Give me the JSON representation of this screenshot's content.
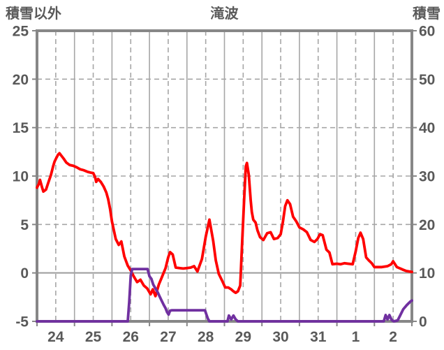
{
  "header": {
    "left_axis_title": "積雪以外",
    "chart_title": "滝波",
    "right_axis_title": "積雪"
  },
  "colors": {
    "red_series": "#FF0000",
    "purple_series": "#7030A0",
    "grid": "#A6A6A6",
    "zero_line": "#9B9B9B",
    "border": "#878787",
    "text": "#595959",
    "background": "#FFFFFF"
  },
  "chart_data": {
    "type": "line",
    "title": "滝波",
    "legend": "none",
    "left_axis": {
      "title": "積雪以外",
      "min": -5,
      "max": 25,
      "ticks": [
        25,
        20,
        15,
        10,
        5,
        0,
        -5
      ]
    },
    "right_axis": {
      "title": "積雪",
      "min": 0,
      "max": 60,
      "ticks": [
        60,
        50,
        40,
        30,
        20,
        10,
        0
      ]
    },
    "x_axis": {
      "range_days": [
        0,
        10
      ],
      "tick_labels": [
        "24",
        "25",
        "26",
        "27",
        "28",
        "29",
        "30",
        "31",
        "1",
        "2"
      ],
      "tick_positions_days": [
        0.5,
        1.5,
        2.5,
        3.5,
        4.5,
        5.5,
        6.5,
        7.5,
        8.5,
        9.5
      ]
    },
    "grid": {
      "v_solid_days": [
        1,
        2,
        3,
        4,
        5,
        6,
        7,
        8,
        9
      ],
      "v_dashed_days": [
        0.5,
        1.5,
        2.5,
        3.5,
        4.5,
        5.5,
        6.5,
        7.5,
        8.5,
        9.5
      ],
      "h_dashed_left_values": [
        20,
        15,
        10,
        5
      ],
      "h_solid_left_values": [
        0
      ],
      "bottom_tick_days": [
        0,
        1,
        2,
        3,
        4,
        5,
        6,
        7,
        8,
        9,
        10
      ]
    },
    "series": [
      {
        "name": "積雪以外 (red line)",
        "axis": "left",
        "color": "#FF0000",
        "points": [
          [
            0,
            8.8
          ],
          [
            0.05,
            9.2
          ],
          [
            0.08,
            9.6
          ],
          [
            0.13,
            8.9
          ],
          [
            0.17,
            8.4
          ],
          [
            0.24,
            8.6
          ],
          [
            0.3,
            9.3
          ],
          [
            0.37,
            10.1
          ],
          [
            0.43,
            11.0
          ],
          [
            0.47,
            11.5
          ],
          [
            0.52,
            11.9
          ],
          [
            0.56,
            12.2
          ],
          [
            0.6,
            12.35
          ],
          [
            0.65,
            12.1
          ],
          [
            0.71,
            11.8
          ],
          [
            0.78,
            11.4
          ],
          [
            0.87,
            11.15
          ],
          [
            0.97,
            11.05
          ],
          [
            1.06,
            10.9
          ],
          [
            1.15,
            10.7
          ],
          [
            1.25,
            10.6
          ],
          [
            1.34,
            10.45
          ],
          [
            1.43,
            10.35
          ],
          [
            1.5,
            10.3
          ],
          [
            1.55,
            9.9
          ],
          [
            1.58,
            9.4
          ],
          [
            1.63,
            9.7
          ],
          [
            1.7,
            9.4
          ],
          [
            1.78,
            8.9
          ],
          [
            1.85,
            8.3
          ],
          [
            1.9,
            7.6
          ],
          [
            1.95,
            6.6
          ],
          [
            2.0,
            5.3
          ],
          [
            2.05,
            4.4
          ],
          [
            2.1,
            3.5
          ],
          [
            2.18,
            2.9
          ],
          [
            2.25,
            3.25
          ],
          [
            2.33,
            1.7
          ],
          [
            2.42,
            0.75
          ],
          [
            2.5,
            0.25
          ],
          [
            2.58,
            -0.35
          ],
          [
            2.67,
            -0.95
          ],
          [
            2.76,
            -0.7
          ],
          [
            2.85,
            -1.3
          ],
          [
            2.94,
            -1.6
          ],
          [
            3.03,
            -2.2
          ],
          [
            3.09,
            -1.7
          ],
          [
            3.16,
            -2.4
          ],
          [
            3.25,
            -1.2
          ],
          [
            3.34,
            -0.35
          ],
          [
            3.43,
            0.5
          ],
          [
            3.5,
            1.6
          ],
          [
            3.55,
            2.15
          ],
          [
            3.62,
            1.9
          ],
          [
            3.7,
            0.55
          ],
          [
            3.8,
            0.5
          ],
          [
            3.9,
            0.45
          ],
          [
            4.0,
            0.5
          ],
          [
            4.1,
            0.55
          ],
          [
            4.19,
            0.7
          ],
          [
            4.28,
            0.15
          ],
          [
            4.4,
            1.45
          ],
          [
            4.5,
            3.7
          ],
          [
            4.6,
            5.5
          ],
          [
            4.65,
            4.4
          ],
          [
            4.7,
            3.3
          ],
          [
            4.77,
            1.3
          ],
          [
            4.85,
            -0.1
          ],
          [
            4.95,
            -0.9
          ],
          [
            5.02,
            -1.5
          ],
          [
            5.1,
            -1.5
          ],
          [
            5.18,
            -1.7
          ],
          [
            5.24,
            -1.9
          ],
          [
            5.3,
            -2.05
          ],
          [
            5.36,
            -1.9
          ],
          [
            5.42,
            -1.3
          ],
          [
            5.47,
            2.9
          ],
          [
            5.53,
            8.0
          ],
          [
            5.57,
            11.0
          ],
          [
            5.6,
            11.35
          ],
          [
            5.65,
            10.1
          ],
          [
            5.7,
            7.5
          ],
          [
            5.73,
            6.3
          ],
          [
            5.77,
            5.5
          ],
          [
            5.83,
            5.2
          ],
          [
            5.88,
            4.4
          ],
          [
            5.95,
            3.7
          ],
          [
            6.04,
            3.4
          ],
          [
            6.14,
            4.1
          ],
          [
            6.23,
            4.2
          ],
          [
            6.32,
            3.5
          ],
          [
            6.42,
            3.6
          ],
          [
            6.5,
            4.0
          ],
          [
            6.56,
            5.3
          ],
          [
            6.62,
            6.9
          ],
          [
            6.68,
            7.5
          ],
          [
            6.75,
            7.1
          ],
          [
            6.83,
            5.8
          ],
          [
            6.92,
            5.3
          ],
          [
            7.0,
            4.7
          ],
          [
            7.1,
            4.5
          ],
          [
            7.2,
            4.2
          ],
          [
            7.3,
            3.4
          ],
          [
            7.4,
            3.2
          ],
          [
            7.48,
            3.5
          ],
          [
            7.55,
            4.0
          ],
          [
            7.62,
            3.9
          ],
          [
            7.72,
            2.4
          ],
          [
            7.8,
            2.1
          ],
          [
            7.88,
            0.9
          ],
          [
            8.0,
            0.95
          ],
          [
            8.1,
            0.9
          ],
          [
            8.2,
            1.0
          ],
          [
            8.3,
            0.95
          ],
          [
            8.42,
            0.9
          ],
          [
            8.5,
            2.2
          ],
          [
            8.57,
            3.6
          ],
          [
            8.63,
            4.15
          ],
          [
            8.7,
            3.5
          ],
          [
            8.78,
            1.6
          ],
          [
            8.85,
            1.3
          ],
          [
            8.93,
            1.0
          ],
          [
            9.0,
            0.6
          ],
          [
            9.1,
            0.6
          ],
          [
            9.2,
            0.6
          ],
          [
            9.35,
            0.7
          ],
          [
            9.45,
            0.9
          ],
          [
            9.5,
            1.2
          ],
          [
            9.55,
            0.9
          ],
          [
            9.6,
            0.6
          ],
          [
            9.75,
            0.35
          ],
          [
            9.85,
            0.2
          ],
          [
            10,
            0.1
          ]
        ]
      },
      {
        "name": "積雪 (purple line)",
        "axis": "right",
        "color": "#7030A0",
        "points": [
          [
            0,
            0
          ],
          [
            2.42,
            0
          ],
          [
            2.46,
            4
          ],
          [
            2.5,
            9.5
          ],
          [
            2.54,
            10.8
          ],
          [
            2.95,
            10.8
          ],
          [
            3.0,
            9.3
          ],
          [
            3.05,
            8.8
          ],
          [
            3.1,
            7.6
          ],
          [
            3.16,
            6.8
          ],
          [
            3.22,
            6.0
          ],
          [
            3.28,
            5.0
          ],
          [
            3.33,
            4.2
          ],
          [
            3.38,
            3.4
          ],
          [
            3.43,
            2.7
          ],
          [
            3.47,
            1.9
          ],
          [
            3.51,
            1.4
          ],
          [
            3.55,
            2.2
          ],
          [
            3.6,
            2.3
          ],
          [
            4.48,
            2.3
          ],
          [
            4.52,
            1.4
          ],
          [
            4.56,
            0.5
          ],
          [
            4.6,
            0
          ],
          [
            5.08,
            0
          ],
          [
            5.12,
            1.2
          ],
          [
            5.18,
            0.4
          ],
          [
            5.24,
            1.2
          ],
          [
            5.3,
            0.4
          ],
          [
            5.36,
            0
          ],
          [
            9.25,
            0
          ],
          [
            9.3,
            1.3
          ],
          [
            9.35,
            0.4
          ],
          [
            9.4,
            1.3
          ],
          [
            9.46,
            0.3
          ],
          [
            9.52,
            0
          ],
          [
            9.62,
            0.2
          ],
          [
            9.68,
            1.1
          ],
          [
            9.77,
            2.5
          ],
          [
            9.87,
            3.4
          ],
          [
            9.96,
            4.1
          ],
          [
            10,
            4.3
          ]
        ]
      }
    ]
  }
}
